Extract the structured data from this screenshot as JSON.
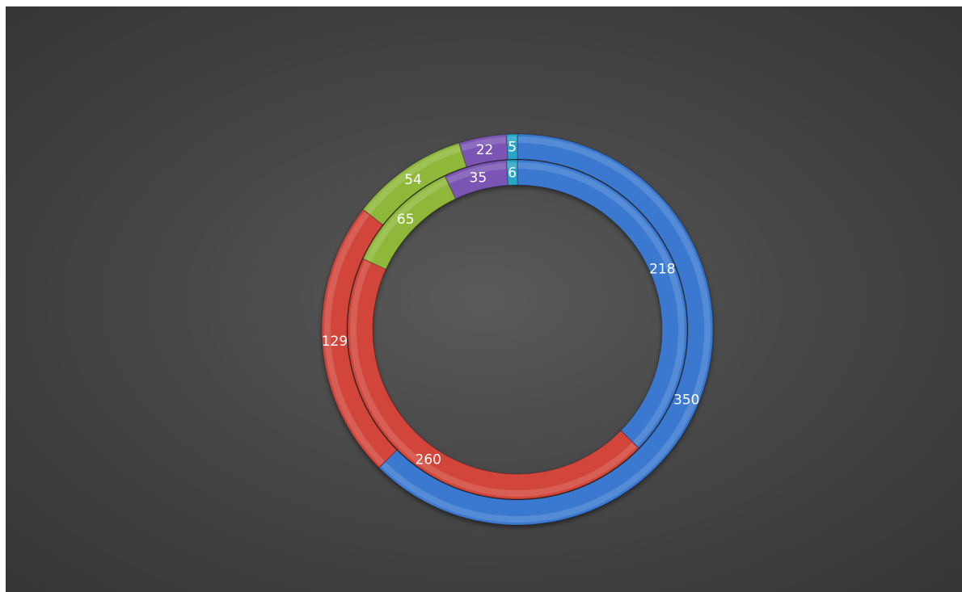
{
  "chart_data": {
    "type": "doughnut",
    "title": "",
    "rings": [
      {
        "ring": "outer",
        "values": [
          350,
          129,
          54,
          22,
          5
        ],
        "colors": [
          "#3b78d0",
          "#d1453b",
          "#8fb83a",
          "#7b55b4",
          "#27a6c6"
        ]
      },
      {
        "ring": "inner",
        "values": [
          218,
          260,
          65,
          35,
          6
        ],
        "colors": [
          "#3b78d0",
          "#d1453b",
          "#8fb83a",
          "#7b55b4",
          "#27a6c6"
        ]
      }
    ],
    "data_labels": true,
    "legend": "none",
    "background": "#474747"
  }
}
